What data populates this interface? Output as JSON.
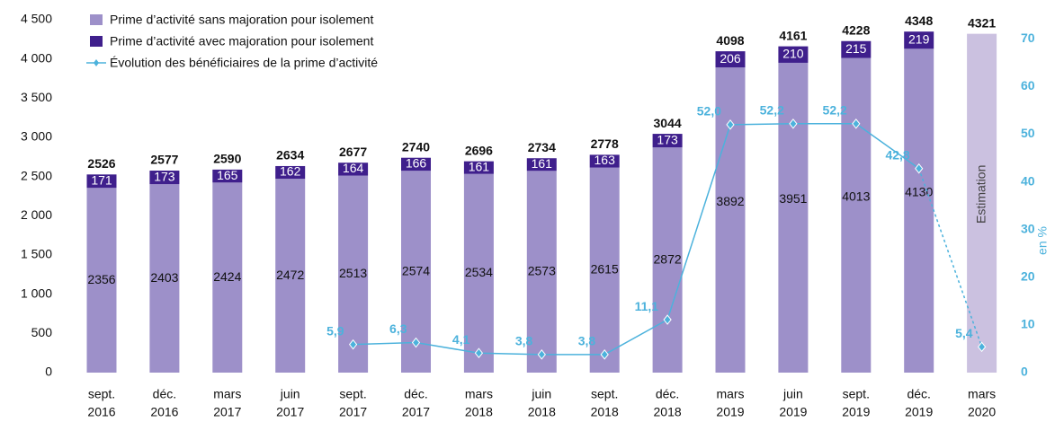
{
  "chart_data": {
    "type": "bar_line",
    "categories": [
      [
        "sept.",
        "2016"
      ],
      [
        "déc.",
        "2016"
      ],
      [
        "mars",
        "2017"
      ],
      [
        "juin",
        "2017"
      ],
      [
        "sept.",
        "2017"
      ],
      [
        "déc.",
        "2017"
      ],
      [
        "mars",
        "2018"
      ],
      [
        "juin",
        "2018"
      ],
      [
        "sept.",
        "2018"
      ],
      [
        "déc.",
        "2018"
      ],
      [
        "mars",
        "2019"
      ],
      [
        "juin",
        "2019"
      ],
      [
        "sept.",
        "2019"
      ],
      [
        "déc.",
        "2019"
      ],
      [
        "mars",
        "2020"
      ]
    ],
    "series": [
      {
        "name": "Prime d’activité sans majoration pour isolement",
        "color": "#9d90c9",
        "values": [
          2356,
          2403,
          2424,
          2472,
          2513,
          2574,
          2534,
          2573,
          2615,
          2872,
          3892,
          3951,
          4013,
          4130,
          null
        ]
      },
      {
        "name": "Prime d’activité avec majoration pour isolement",
        "color": "#3f1f8c",
        "values": [
          171,
          173,
          165,
          162,
          164,
          166,
          161,
          161,
          163,
          173,
          206,
          210,
          215,
          219,
          null
        ]
      },
      {
        "name": "Évolution des bénéficiaires de la prime d’activité",
        "color": "#4cb2dc",
        "axis": "y2",
        "values": [
          null,
          null,
          null,
          null,
          5.9,
          6.3,
          4.1,
          3.8,
          3.8,
          11.1,
          52.0,
          52.2,
          52.2,
          42.8,
          5.4
        ],
        "value_labels": [
          null,
          null,
          null,
          null,
          "5,9",
          "6,3",
          "4,1",
          "3,8",
          "3,8",
          "11,1",
          "52,0",
          "52,2",
          "52,2",
          "42,8",
          "5,4"
        ]
      }
    ],
    "totals": [
      2526,
      2577,
      2590,
      2634,
      2677,
      2740,
      2696,
      2734,
      2778,
      3044,
      4098,
      4161,
      4228,
      4348,
      4321
    ],
    "estimate": {
      "label": "Estimation",
      "color": "#cbc1e0"
    },
    "ylim": [
      0,
      4500
    ],
    "yticks": [
      0,
      500,
      {
        "value": 1000,
        "label": "1 000"
      },
      {
        "value": 1500,
        "label": "1 500"
      },
      {
        "value": 2000,
        "label": "2 000"
      },
      {
        "value": 2500,
        "label": "2 500"
      },
      {
        "value": 3000,
        "label": "3 000"
      },
      {
        "value": 3500,
        "label": "3 500"
      },
      {
        "value": 4000,
        "label": "4 000"
      },
      {
        "value": 4500,
        "label": "4 500"
      }
    ],
    "y2lim": [
      0,
      74
    ],
    "y2ticks": [
      0,
      10,
      20,
      30,
      40,
      50,
      60,
      70
    ],
    "y2label": "en %"
  }
}
